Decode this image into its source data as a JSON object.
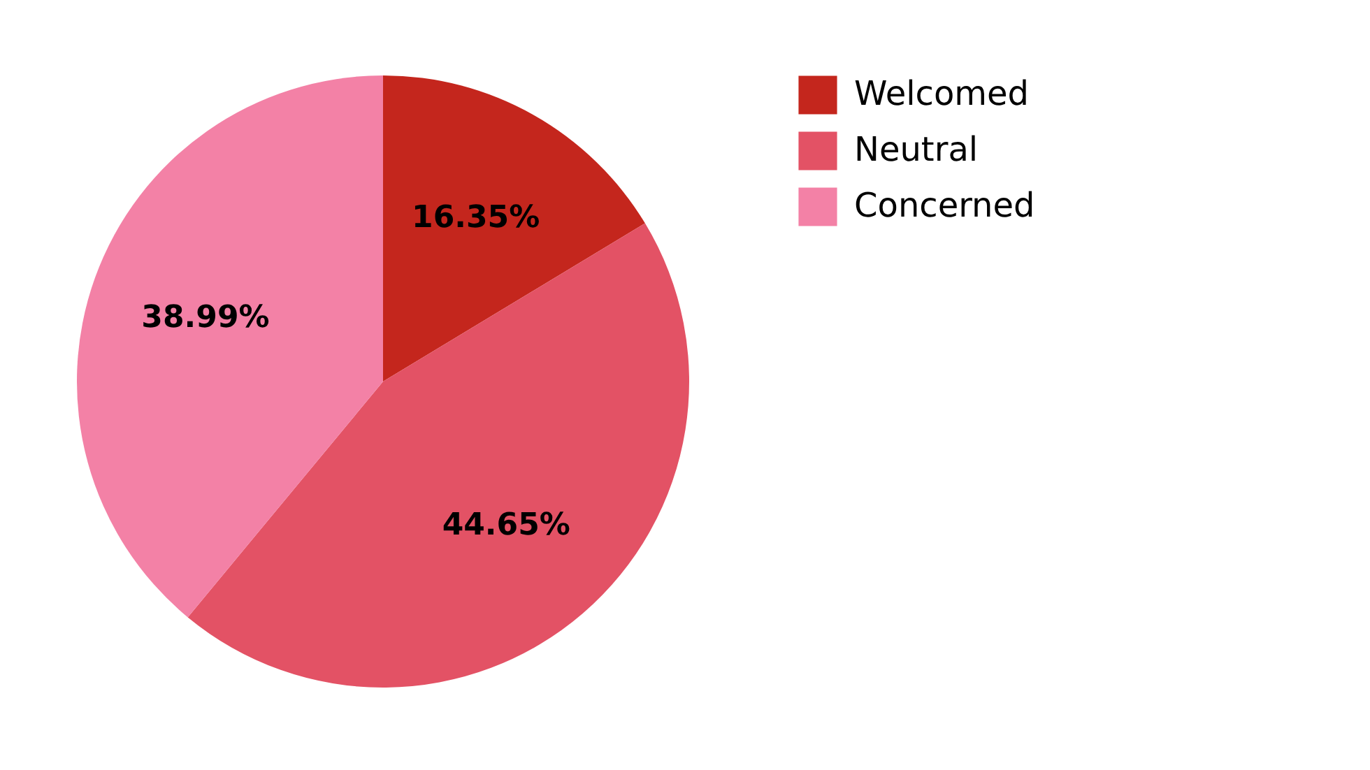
{
  "chart_data": {
    "type": "pie",
    "categories": [
      "Welcomed",
      "Neutral",
      "Concerned"
    ],
    "values": [
      16.35,
      44.65,
      38.99
    ],
    "colors": [
      "#c4261d",
      "#e35265",
      "#f381a6"
    ],
    "value_labels": [
      "16.35%",
      "44.65%",
      "38.99%"
    ],
    "legend": "right"
  }
}
